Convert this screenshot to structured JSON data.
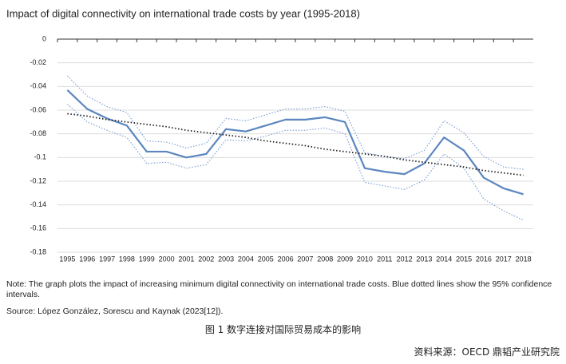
{
  "chart_data": {
    "type": "line",
    "title": "Impact of digital connectivity on international trade costs by year (1995-2018)",
    "categories": [
      "1995",
      "1996",
      "1997",
      "1998",
      "1999",
      "2000",
      "2001",
      "2002",
      "2003",
      "2004",
      "2005",
      "2006",
      "2007",
      "2008",
      "2009",
      "2010",
      "2011",
      "2012",
      "2013",
      "2014",
      "2015",
      "2016",
      "2017",
      "2018"
    ],
    "series": [
      {
        "color": "#5b86bf",
        "style": "solid",
        "values": [
          -0.043,
          -0.059,
          -0.067,
          -0.073,
          -0.095,
          -0.095,
          -0.1,
          -0.097,
          -0.076,
          -0.078,
          -0.073,
          -0.068,
          -0.068,
          -0.066,
          -0.07,
          -0.109,
          -0.112,
          -0.114,
          -0.105,
          -0.083,
          -0.094,
          -0.117,
          -0.126,
          -0.131
        ]
      },
      {
        "color": "#7fa3d6",
        "style": "dotted",
        "values": [
          -0.031,
          -0.048,
          -0.057,
          -0.062,
          -0.086,
          -0.087,
          -0.092,
          -0.088,
          -0.067,
          -0.069,
          -0.064,
          -0.059,
          -0.059,
          -0.057,
          -0.061,
          -0.096,
          -0.099,
          -0.101,
          -0.094,
          -0.069,
          -0.079,
          -0.099,
          -0.108,
          -0.11
        ]
      },
      {
        "color": "#7fa3d6",
        "style": "dotted",
        "values": [
          -0.055,
          -0.07,
          -0.077,
          -0.083,
          -0.105,
          -0.104,
          -0.109,
          -0.106,
          -0.085,
          -0.086,
          -0.082,
          -0.077,
          -0.077,
          -0.075,
          -0.08,
          -0.121,
          -0.124,
          -0.127,
          -0.119,
          -0.097,
          -0.109,
          -0.135,
          -0.145,
          -0.153
        ]
      },
      {
        "color": "#222222",
        "style": "trend",
        "values": [
          -0.063,
          -0.065,
          -0.068,
          -0.07,
          -0.072,
          -0.074,
          -0.077,
          -0.079,
          -0.081,
          -0.083,
          -0.086,
          -0.088,
          -0.09,
          -0.093,
          -0.095,
          -0.097,
          -0.099,
          -0.102,
          -0.104,
          -0.106,
          -0.108,
          -0.111,
          -0.113,
          -0.115
        ]
      }
    ],
    "ylim": [
      0,
      -0.18
    ],
    "yticks": [
      0,
      -0.02,
      -0.04,
      -0.06,
      -0.08,
      -0.1,
      -0.12,
      -0.14,
      -0.16,
      -0.18
    ],
    "grid": true
  },
  "notes": {
    "note": "Note: The graph plots the impact of increasing minimum digital connectivity on international trade costs. Blue dotted lines show the 95% confidence intervals.",
    "source": "Source: López González, Sorescu and Kaynak (2023[12]).",
    "caption": "图 1 数字连接对国际贸易成本的影响",
    "credit": "资料来源：OECD 鼎韬产业研究院"
  }
}
